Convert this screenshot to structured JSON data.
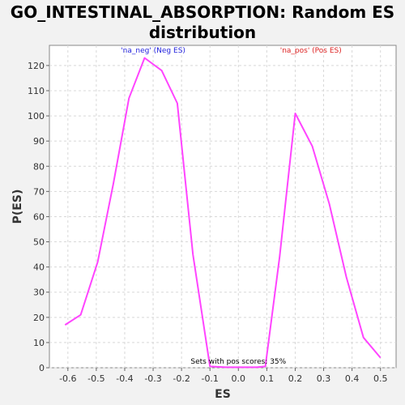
{
  "chart_data": {
    "type": "line",
    "title_line1": "GO_INTESTINAL_ABSORPTION: Random ES",
    "title_line2": "distribution",
    "xlabel": "ES",
    "ylabel": "P(ES)",
    "xlim": [
      -0.665,
      0.555
    ],
    "ylim": [
      0,
      128
    ],
    "x_ticks": [
      -0.6,
      -0.5,
      -0.4,
      -0.3,
      -0.2,
      -0.1,
      0.0,
      0.1,
      0.2,
      0.3,
      0.4,
      0.5
    ],
    "x_tick_labels": [
      "-0.6",
      "-0.5",
      "-0.4",
      "-0.3",
      "-0.2",
      "-0.1",
      "0.0",
      "0.1",
      "0.2",
      "0.3",
      "0.4",
      "0.5"
    ],
    "y_ticks": [
      0,
      10,
      20,
      30,
      40,
      50,
      60,
      70,
      80,
      90,
      100,
      110,
      120
    ],
    "y_tick_labels": [
      "0",
      "10",
      "20",
      "30",
      "40",
      "50",
      "60",
      "70",
      "80",
      "90",
      "100",
      "110",
      "120"
    ],
    "grid": true,
    "series": [
      {
        "color": "#ff44ff",
        "x": [
          -0.61,
          -0.555,
          -0.495,
          -0.44,
          -0.385,
          -0.33,
          -0.27,
          -0.215,
          -0.16,
          -0.1,
          -0.045,
          0.01,
          0.065,
          0.095,
          0.145,
          0.2,
          0.26,
          0.32,
          0.38,
          0.44,
          0.5
        ],
        "y": [
          17,
          21,
          42,
          73,
          107,
          123,
          118,
          105,
          45,
          0.5,
          0.2,
          0.2,
          0.2,
          0.5,
          44,
          101,
          88,
          65,
          36,
          12,
          4
        ]
      }
    ],
    "annotations": [
      {
        "text": "'na_neg' (Neg ES)",
        "color": "#2222dd",
        "x": -0.3,
        "y": 126
      },
      {
        "text": "'na_pos' (Pos ES)",
        "color": "#dd2222",
        "x": 0.255,
        "y": 126
      }
    ],
    "footnote": {
      "text": "Sets with pos scores: 35%",
      "x": 0.0,
      "y": 1
    }
  }
}
